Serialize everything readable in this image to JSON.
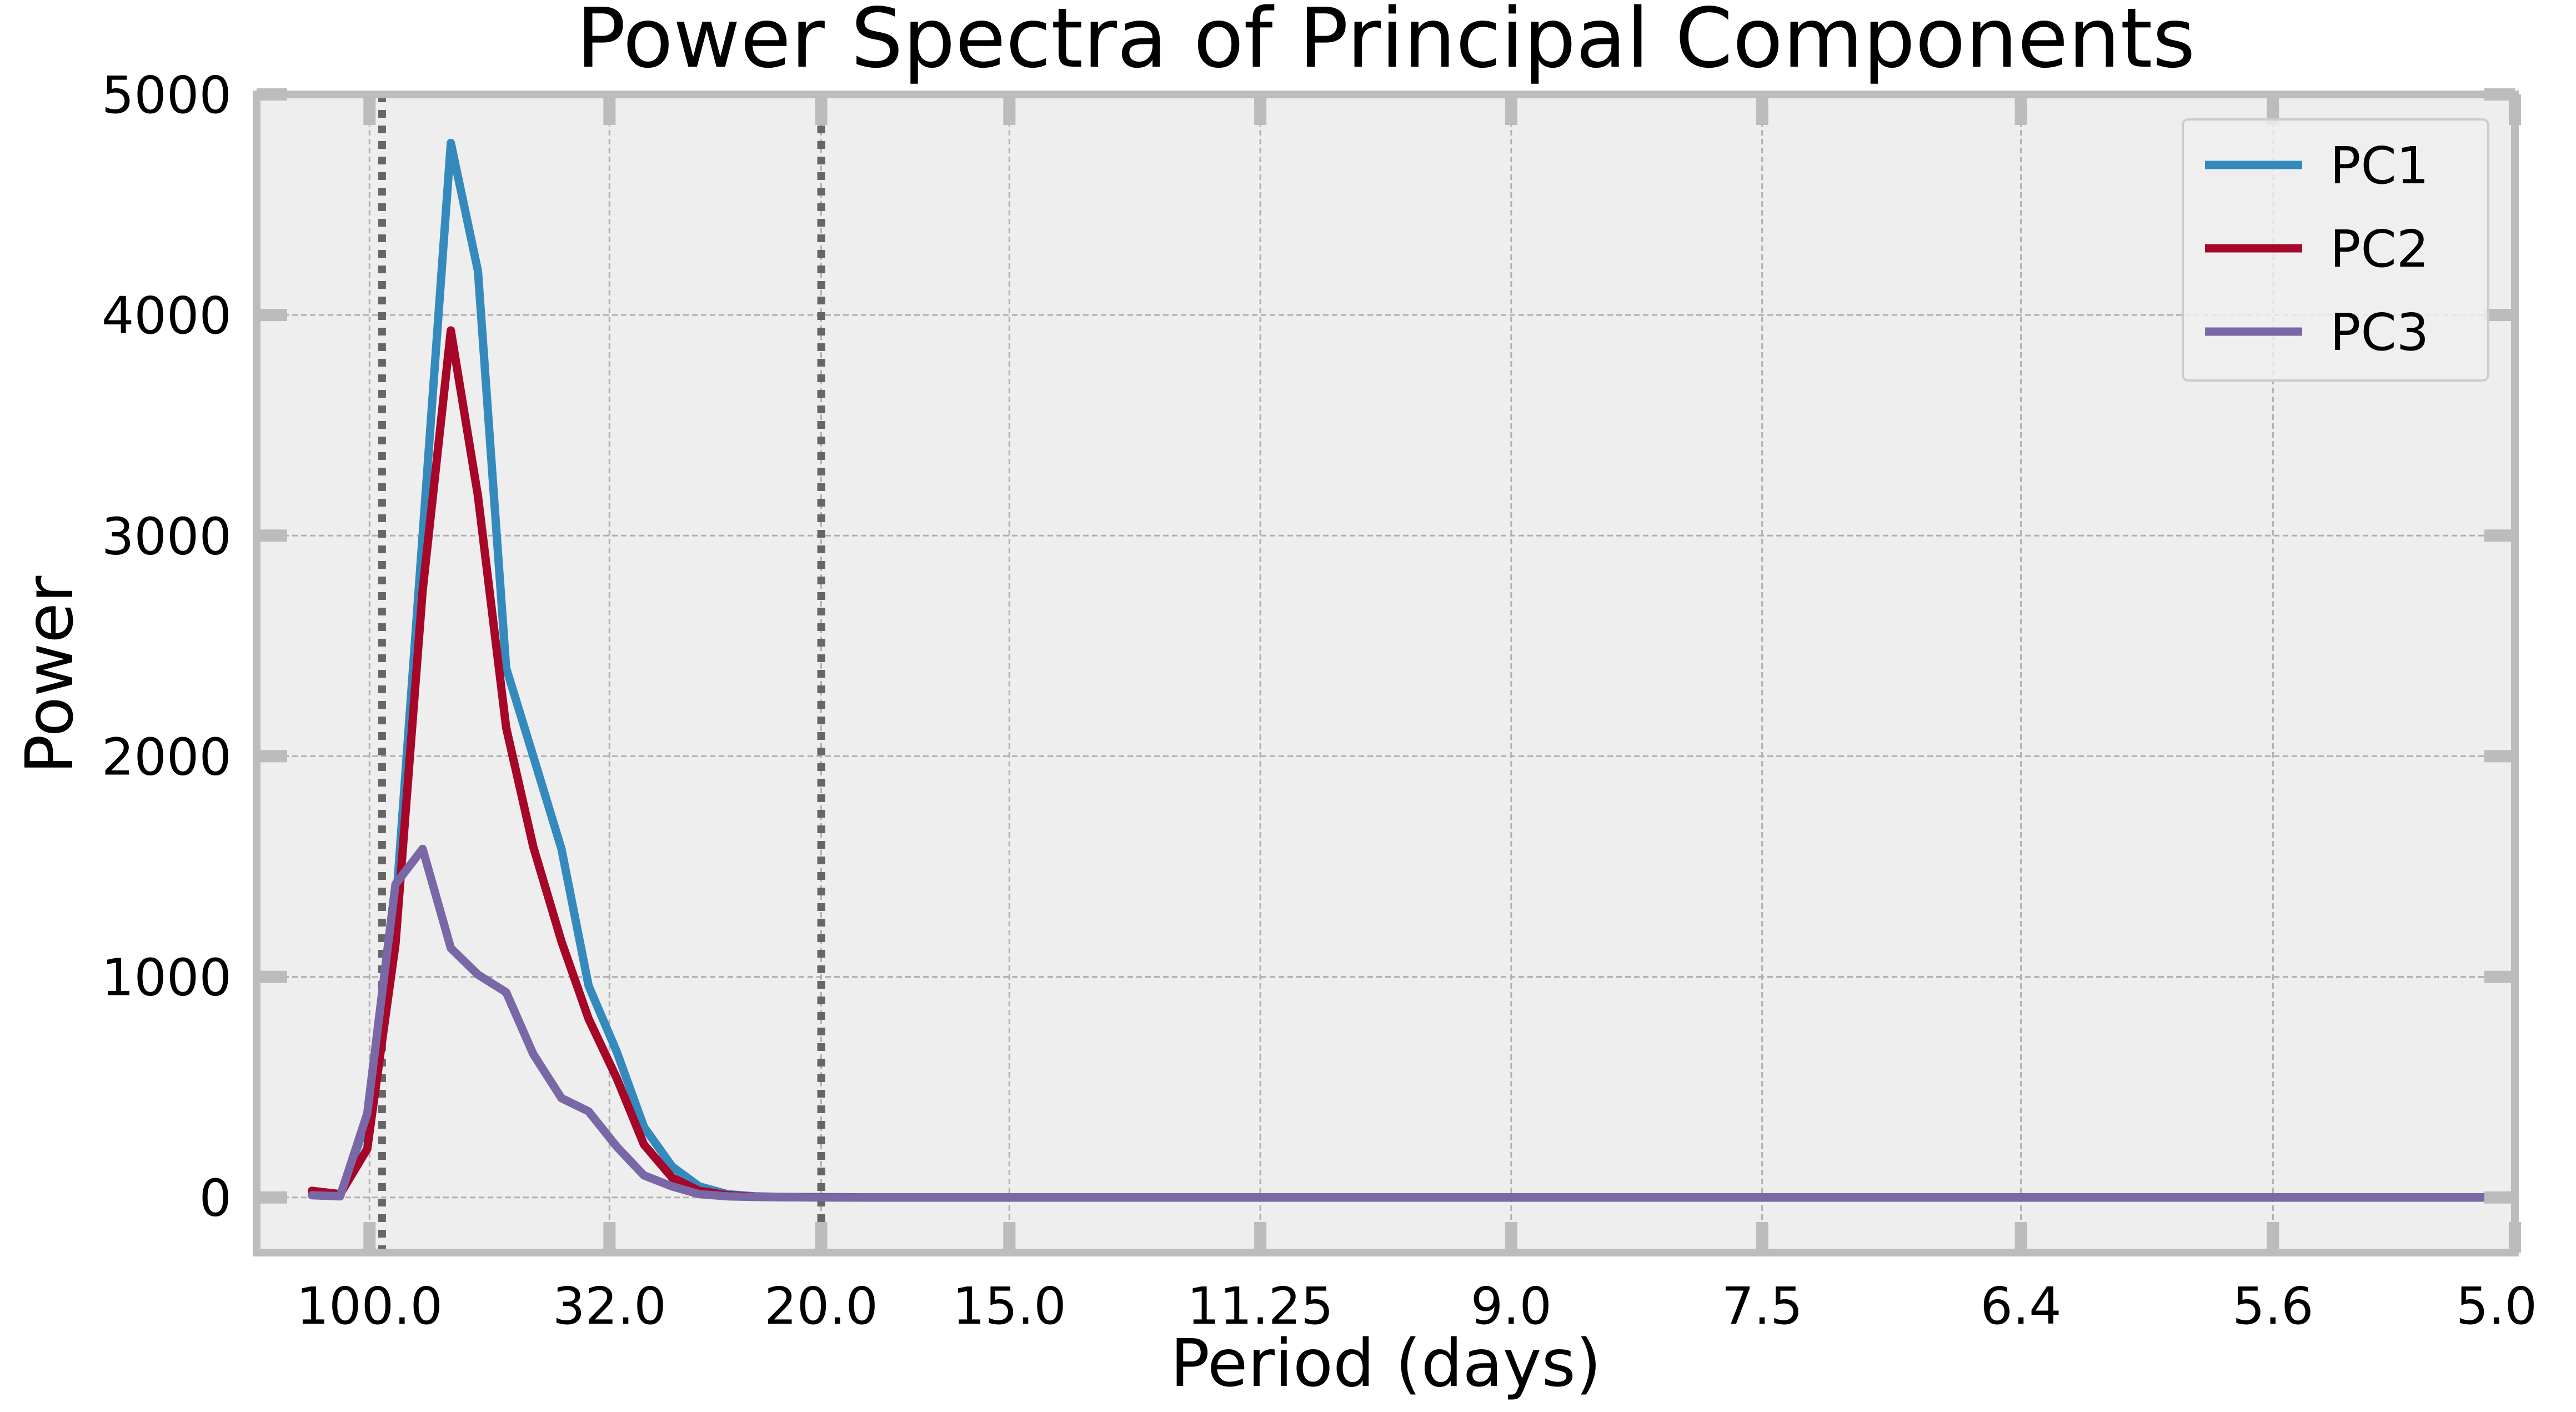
{
  "chart_data": {
    "type": "line",
    "title": "Power Spectra of Principal Components",
    "xlabel": "Period (days)",
    "ylabel": "Power",
    "x_axis_note": "frequency axis (cycles/day), tick labels show period = 1/frequency",
    "x_tick_labels": [
      "100.0",
      "32.0",
      "20.0",
      "15.0",
      "11.25",
      "9.0",
      "7.5",
      "6.4",
      "5.6",
      "5.0"
    ],
    "y_ticks": [
      0,
      1000,
      2000,
      3000,
      4000,
      5000
    ],
    "ylim": [
      -250,
      5000
    ],
    "grid": true,
    "legend_position": "top-right",
    "vlines_period_days": [
      90,
      20
    ],
    "frequency": [
      0.0049,
      0.0074,
      0.0098,
      0.0123,
      0.0147,
      0.0172,
      0.0196,
      0.0221,
      0.0245,
      0.027,
      0.0294,
      0.0319,
      0.0343,
      0.0368,
      0.0392,
      0.0417,
      0.0441,
      0.0466,
      0.049,
      0.0515,
      0.0539,
      0.0564,
      0.0588,
      0.0613,
      0.0637,
      0.0662,
      0.0686,
      0.0711,
      0.0735,
      0.076,
      0.0784,
      0.0809,
      0.0833,
      0.0858,
      0.0882,
      0.0907,
      0.0931,
      0.0956,
      0.098,
      0.1005,
      0.1029,
      0.1054,
      0.1078,
      0.1103,
      0.1127,
      0.1152,
      0.1176,
      0.1201,
      0.1225,
      0.125,
      0.1275,
      0.1299,
      0.1324,
      0.1348,
      0.1373,
      0.1397,
      0.1422,
      0.1446,
      0.1471,
      0.1495,
      0.152,
      0.1544,
      0.1569,
      0.1593,
      0.1618,
      0.1642,
      0.1667,
      0.1691,
      0.1716,
      0.174,
      0.1765,
      0.1789,
      0.1814,
      0.1838,
      0.1863,
      0.1887,
      0.1912,
      0.1936,
      0.1961,
      0.1985,
      0.2
    ],
    "series": [
      {
        "name": "PC1",
        "color": "#348ABD",
        "values": [
          20,
          10,
          350,
          1300,
          3000,
          4780,
          4200,
          2400,
          2000,
          1580,
          960,
          660,
          320,
          140,
          50,
          15,
          5,
          2,
          1,
          1,
          0,
          0,
          0,
          0,
          0,
          0,
          0,
          0,
          0,
          0,
          0,
          0,
          0,
          0,
          0,
          0,
          0,
          0,
          0,
          0,
          0,
          0,
          0,
          0,
          0,
          0,
          0,
          0,
          0,
          0,
          0,
          0,
          0,
          0,
          0,
          0,
          0,
          0,
          0,
          0,
          0,
          0,
          0,
          0,
          0,
          0,
          0,
          0,
          0,
          0,
          0,
          0,
          0,
          0,
          0,
          0,
          0,
          0,
          0,
          0,
          0
        ]
      },
      {
        "name": "PC2",
        "color": "#A60628",
        "values": [
          30,
          15,
          220,
          1150,
          2750,
          3930,
          3180,
          2130,
          1590,
          1160,
          810,
          540,
          240,
          90,
          30,
          10,
          3,
          1,
          1,
          0,
          0,
          0,
          0,
          0,
          0,
          0,
          0,
          0,
          0,
          0,
          0,
          0,
          0,
          0,
          0,
          0,
          0,
          0,
          0,
          0,
          0,
          0,
          0,
          0,
          0,
          0,
          0,
          0,
          0,
          0,
          0,
          0,
          0,
          0,
          0,
          0,
          0,
          0,
          0,
          0,
          0,
          0,
          0,
          0,
          0,
          0,
          0,
          0,
          0,
          0,
          0,
          0,
          0,
          0,
          0,
          0,
          0,
          0,
          0,
          0,
          0
        ]
      },
      {
        "name": "PC3",
        "color": "#7A68A6",
        "values": [
          10,
          5,
          380,
          1420,
          1580,
          1130,
          1010,
          930,
          650,
          450,
          390,
          230,
          100,
          50,
          15,
          5,
          2,
          1,
          0,
          0,
          0,
          0,
          0,
          0,
          0,
          0,
          0,
          0,
          0,
          0,
          0,
          0,
          0,
          0,
          0,
          0,
          0,
          0,
          0,
          0,
          0,
          0,
          0,
          0,
          0,
          0,
          0,
          0,
          0,
          0,
          0,
          0,
          0,
          0,
          0,
          0,
          0,
          0,
          0,
          0,
          0,
          0,
          0,
          0,
          0,
          0,
          0,
          0,
          0,
          0,
          0,
          0,
          0,
          0,
          0,
          0,
          0,
          0,
          0,
          0,
          0
        ]
      }
    ]
  },
  "style": {
    "plot_background": "#EEEEEE",
    "spine_color": "#BCBCBC",
    "grid_color": "#B0B0B0",
    "vline_color": "#666666"
  }
}
